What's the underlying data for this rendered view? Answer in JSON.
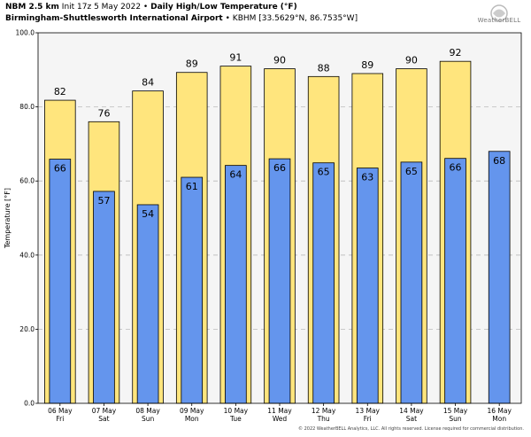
{
  "header": {
    "model": "NBM 2.5 km",
    "init": "Init 17z 5 May 2022",
    "sep": "•",
    "product": "Daily High/Low Temperature (°F)",
    "station": "Birmingham-Shuttlesworth International Airport",
    "station_info": "KBHM [33.5629°N, 86.7535°W]"
  },
  "logo": {
    "brand": "WeatherBELL"
  },
  "copyright": "© 2022 WeatherBELL Analytics, LLC. All rights reserved. License required for commercial distribution.",
  "chart_data": {
    "type": "bar",
    "title": "Daily High/Low Temperature (°F)",
    "ylabel": "Temperature [°F]",
    "ylim": [
      0,
      100
    ],
    "yticks": [
      "0.0",
      "20.0",
      "40.0",
      "60.0",
      "80.0",
      "100.0"
    ],
    "grid": true,
    "categories": [
      {
        "date": "06 May",
        "day": "Fri"
      },
      {
        "date": "07 May",
        "day": "Sat"
      },
      {
        "date": "08 May",
        "day": "Sun"
      },
      {
        "date": "09 May",
        "day": "Mon"
      },
      {
        "date": "10 May",
        "day": "Tue"
      },
      {
        "date": "11 May",
        "day": "Wed"
      },
      {
        "date": "12 May",
        "day": "Thu"
      },
      {
        "date": "13 May",
        "day": "Fri"
      },
      {
        "date": "14 May",
        "day": "Sat"
      },
      {
        "date": "15 May",
        "day": "Sun"
      },
      {
        "date": "16 May",
        "day": "Mon"
      }
    ],
    "series": [
      {
        "role": "high",
        "color": "#ffe57d",
        "values": [
          82,
          76,
          84,
          89,
          91,
          90,
          88,
          89,
          90,
          92,
          null
        ],
        "exact": [
          81.8,
          76.0,
          84.3,
          89.3,
          91.0,
          90.3,
          88.2,
          89.0,
          90.3,
          92.3,
          null
        ]
      },
      {
        "role": "low",
        "color": "#6495ed",
        "values": [
          66,
          57,
          54,
          61,
          64,
          66,
          65,
          63,
          65,
          66,
          68
        ],
        "exact": [
          65.9,
          57.2,
          53.6,
          61.0,
          64.2,
          66.0,
          64.9,
          63.5,
          65.1,
          66.1,
          68.0
        ]
      }
    ]
  }
}
